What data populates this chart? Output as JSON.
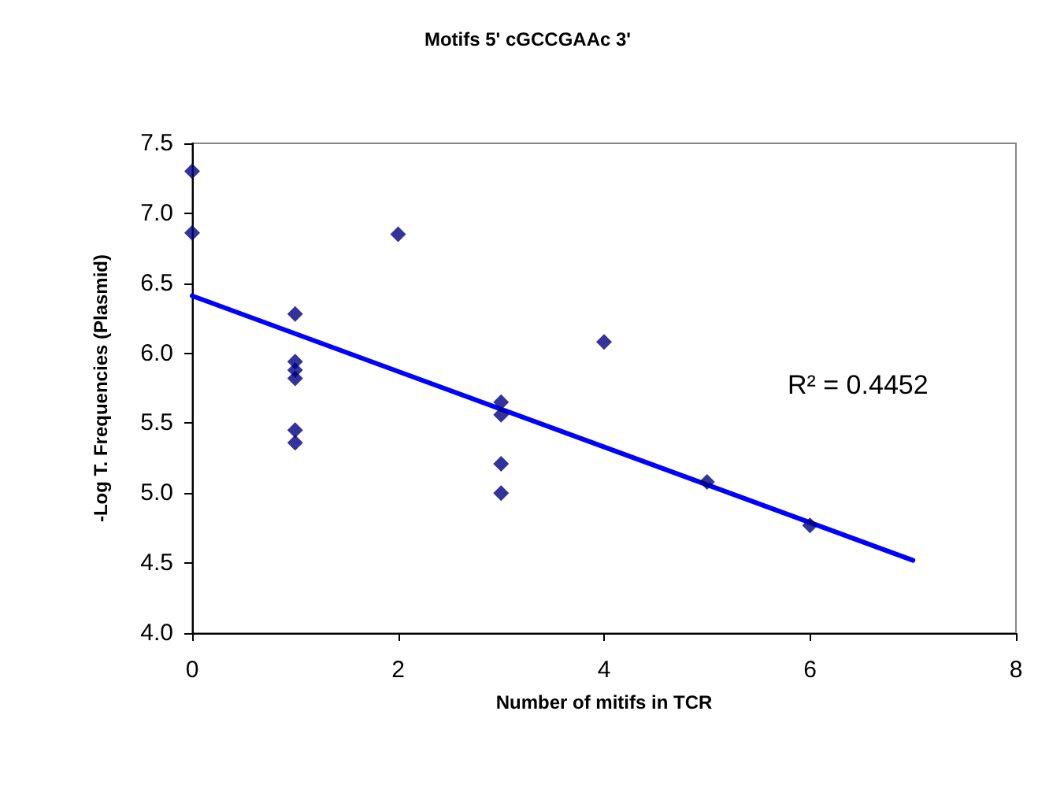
{
  "chart_data": {
    "type": "scatter",
    "title": "Motifs 5' cGCCGAAc 3'",
    "xlabel": "Number of mitifs in TCR",
    "ylabel": "-Log T. Frequencies (Plasmid)",
    "annotations": [
      "R² = 0.4452"
    ],
    "xlim": [
      0,
      8
    ],
    "xticks": [
      0,
      2,
      4,
      6,
      8
    ],
    "ylim": [
      4,
      7.5
    ],
    "yticks": [
      {
        "value": 4,
        "label": "4.0"
      },
      {
        "value": 4.5,
        "label": "4.5"
      },
      {
        "value": 5,
        "label": "5.0"
      },
      {
        "value": 5.5,
        "label": "5.5"
      },
      {
        "value": 6,
        "label": "6.0"
      },
      {
        "value": 6.5,
        "label": "6.5"
      },
      {
        "value": 7,
        "label": "7.0"
      },
      {
        "value": 7.5,
        "label": "7.5"
      }
    ],
    "grid": false,
    "marker": "diamond",
    "series": [
      {
        "color": "#000080",
        "x": [
          0,
          0,
          1,
          1,
          1,
          1,
          1,
          1,
          2,
          3,
          3,
          3,
          3,
          4,
          5,
          6
        ],
        "values": [
          7.3,
          6.86,
          6.28,
          5.94,
          5.88,
          5.82,
          5.45,
          5.36,
          6.85,
          5.65,
          5.56,
          5.21,
          5.0,
          6.08,
          5.08,
          4.77
        ]
      },
      {
        "type": "line",
        "color": "#0000ff",
        "marker": "none",
        "line_style": "solid",
        "x": [
          0,
          7
        ],
        "values": [
          6.41,
          4.52
        ]
      }
    ]
  }
}
